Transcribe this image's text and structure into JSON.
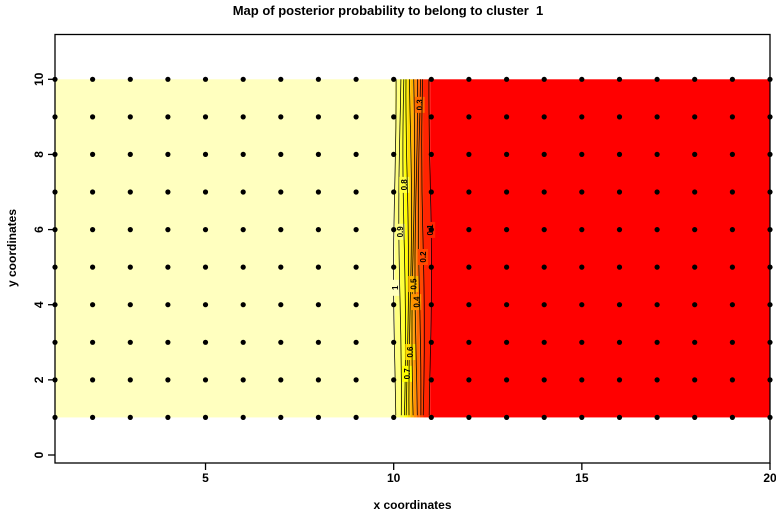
{
  "title": "Map of posterior probability to belong to cluster  1",
  "x_axis": {
    "label": "x coordinates",
    "ticks": [
      "5",
      "10",
      "15",
      "20"
    ]
  },
  "y_axis": {
    "label": "y coordinates",
    "ticks": [
      "0",
      "2",
      "4",
      "6",
      "8",
      "10"
    ]
  },
  "colors": {
    "background": "#FFFFFF",
    "frame": "#000000",
    "dot": "#000000",
    "high_probability": "#FFFFBF",
    "low_probability": "#FF0000",
    "contour_line": "#000000"
  },
  "chart_data": {
    "type": "heatmap",
    "title": "Map of posterior probability to belong to cluster  1",
    "xlabel": "x coordinates",
    "ylabel": "y coordinates",
    "xlim": [
      1,
      20
    ],
    "ylim": [
      0,
      10
    ],
    "x_ticks": [
      5,
      10,
      15,
      20
    ],
    "y_ticks": [
      0,
      2,
      4,
      6,
      8,
      10
    ],
    "image_extent": {
      "x": [
        1,
        20
      ],
      "y": [
        1,
        10
      ]
    },
    "regions": [
      {
        "x_range": [
          1,
          10
        ],
        "posterior_probability": 1,
        "color": "#FFFFBF"
      },
      {
        "x_range": [
          11,
          20
        ],
        "posterior_probability": 0,
        "color": "#FF0000"
      }
    ],
    "transition_band": {
      "x_from": 10,
      "x_to": 11
    },
    "grid_points": {
      "x_from": 1,
      "x_to": 20,
      "x_step": 1,
      "y_from": 1,
      "y_to": 10,
      "y_step": 1
    },
    "palette_high_to_low": [
      "#FFFFBF",
      "#FFFF80",
      "#FFFF40",
      "#FFFF00",
      "#FFDB00",
      "#FFB600",
      "#FF9200",
      "#FF6D00",
      "#FF4900",
      "#FF2400",
      "#FF0000"
    ],
    "contours": [
      {
        "level": "1",
        "x": 10.03,
        "label_y": 4.45
      },
      {
        "level": "0.9",
        "x": 10.17,
        "label_y": 5.94
      },
      {
        "level": "0.8",
        "x": 10.28,
        "label_y": 7.19
      },
      {
        "level": "0.7",
        "x": 10.36,
        "label_y": 2.16
      },
      {
        "level": "0.6",
        "x": 10.44,
        "label_y": 2.74
      },
      {
        "level": "0.5",
        "x": 10.52,
        "label_y": 4.55
      },
      {
        "level": "0.4",
        "x": 10.6,
        "label_y": 4.07
      },
      {
        "level": "0.3",
        "x": 10.69,
        "label_y": 9.32
      },
      {
        "level": "0.2",
        "x": 10.78,
        "label_y": 5.27
      },
      {
        "level": "0.1",
        "x": 10.97,
        "label_y": 5.99
      }
    ]
  }
}
